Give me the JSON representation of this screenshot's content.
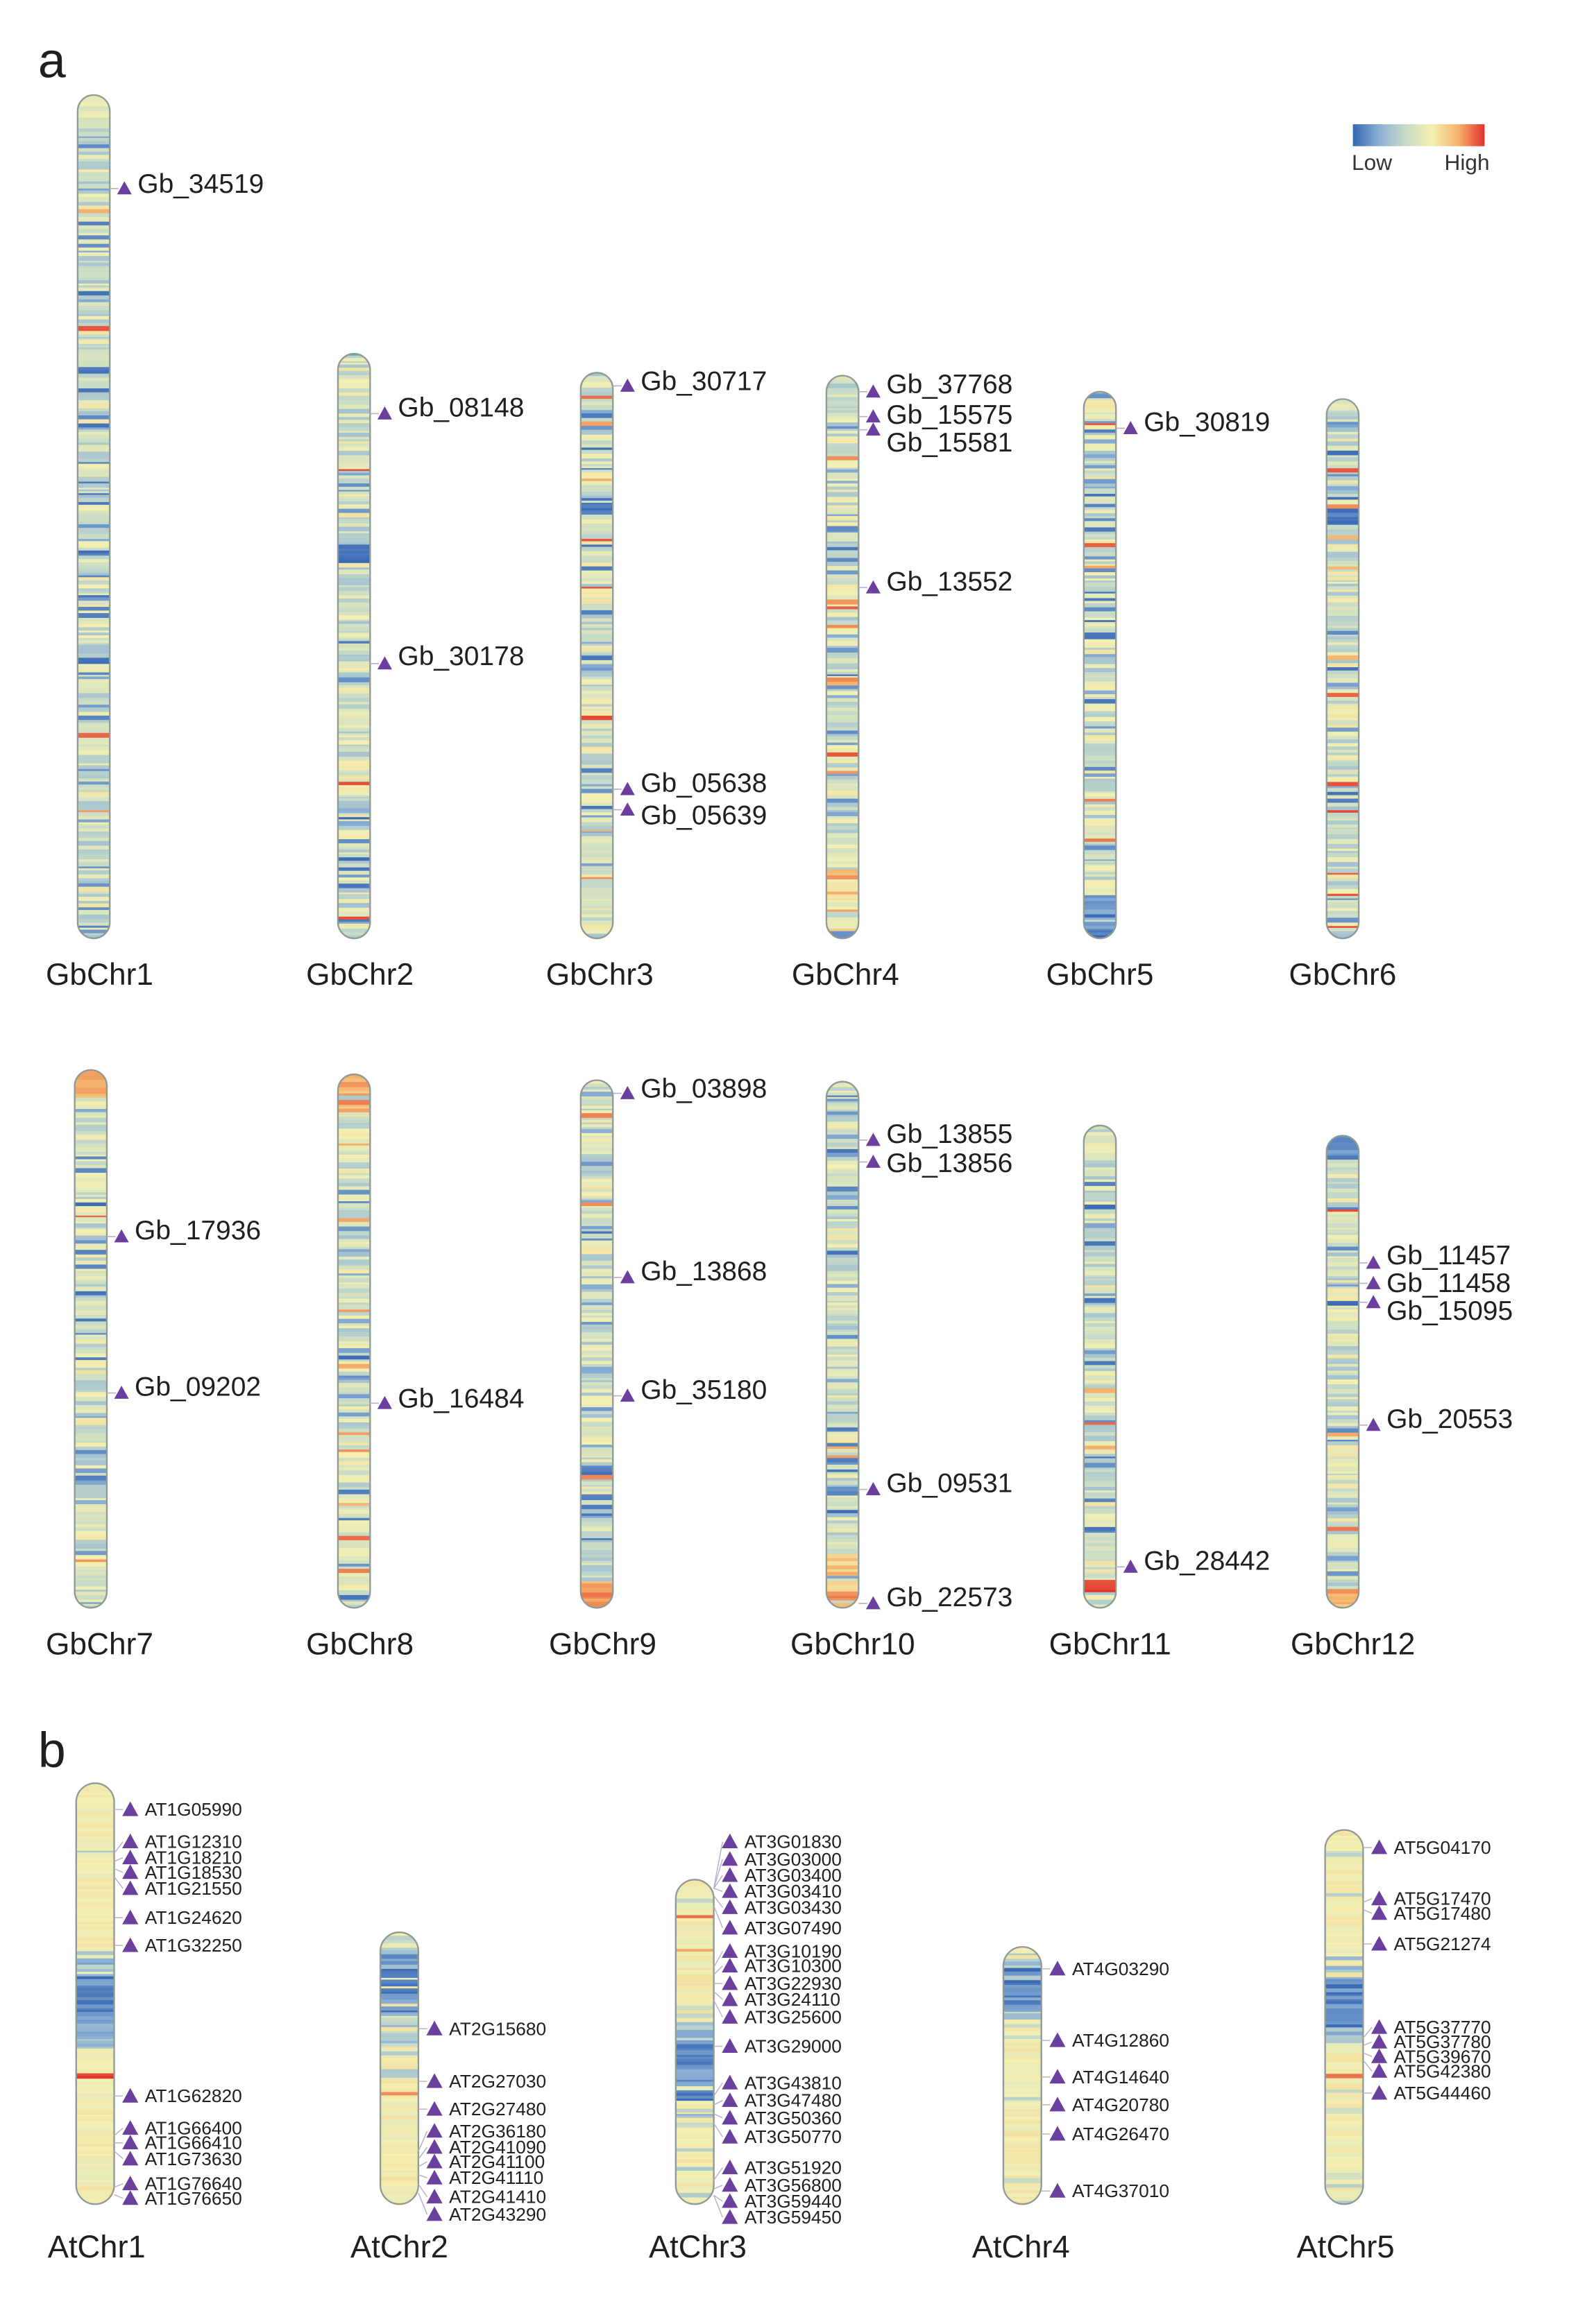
{
  "panel_a": {
    "label": "a",
    "legend": {
      "low": "Low",
      "high": "High"
    },
    "chromosomes": [
      {
        "name": "GbChr1",
        "genes": [
          "Gb_34519"
        ]
      },
      {
        "name": "GbChr2",
        "genes": [
          "Gb_08148",
          "Gb_30178"
        ]
      },
      {
        "name": "GbChr3",
        "genes": [
          "Gb_30717",
          "Gb_05638",
          "Gb_05639"
        ]
      },
      {
        "name": "GbChr4",
        "genes": [
          "Gb_37768",
          "Gb_15575",
          "Gb_15581",
          "Gb_13552"
        ]
      },
      {
        "name": "GbChr5",
        "genes": [
          "Gb_30819"
        ]
      },
      {
        "name": "GbChr6",
        "genes": []
      },
      {
        "name": "GbChr7",
        "genes": [
          "Gb_17936",
          "Gb_09202"
        ]
      },
      {
        "name": "GbChr8",
        "genes": [
          "Gb_16484"
        ]
      },
      {
        "name": "GbChr9",
        "genes": [
          "Gb_03898",
          "Gb_13868",
          "Gb_35180"
        ]
      },
      {
        "name": "GbChr10",
        "genes": [
          "Gb_13855",
          "Gb_13856",
          "Gb_09531",
          "Gb_22573"
        ]
      },
      {
        "name": "GbChr11",
        "genes": [
          "Gb_28442"
        ]
      },
      {
        "name": "GbChr12",
        "genes": [
          "Gb_11457",
          "Gb_11458",
          "Gb_15095",
          "Gb_20553"
        ]
      }
    ]
  },
  "panel_b": {
    "label": "b",
    "chromosomes": [
      {
        "name": "AtChr1",
        "genes": [
          "AT1G05990",
          "AT1G12310",
          "AT1G18210",
          "AT1G18530",
          "AT1G21550",
          "AT1G24620",
          "AT1G32250",
          "AT1G62820",
          "AT1G66400",
          "AT1G66410",
          "AT1G73630",
          "AT1G76640",
          "AT1G76650"
        ]
      },
      {
        "name": "AtChr2",
        "genes": [
          "AT2G15680",
          "AT2G27030",
          "AT2G27480",
          "AT2G36180",
          "AT2G41090",
          "AT2G41100",
          "AT2G41110",
          "AT2G41410",
          "AT2G43290"
        ]
      },
      {
        "name": "AtChr3",
        "genes": [
          "AT3G01830",
          "AT3G03000",
          "AT3G03400",
          "AT3G03410",
          "AT3G03430",
          "AT3G07490",
          "AT3G10190",
          "AT3G10300",
          "AT3G22930",
          "AT3G24110",
          "AT3G25600",
          "AT3G29000",
          "AT3G43810",
          "AT3G47480",
          "AT3G50360",
          "AT3G50770",
          "AT3G51920",
          "AT3G56800",
          "AT3G59440",
          "AT3G59450"
        ]
      },
      {
        "name": "AtChr4",
        "genes": [
          "AT4G03290",
          "AT4G12860",
          "AT4G14640",
          "AT4G20780",
          "AT4G26470",
          "AT4G37010"
        ]
      },
      {
        "name": "AtChr5",
        "genes": [
          "AT5G04170",
          "AT5G17470",
          "AT5G17480",
          "AT5G21274",
          "AT5G37770",
          "AT5G37780",
          "AT5G39670",
          "AT5G42380",
          "AT5G44460"
        ]
      }
    ]
  },
  "colors": {
    "heat_scale": [
      "#3566b3",
      "#8cb0d5",
      "#c7dbc8",
      "#f3efb2",
      "#f5b36c",
      "#e2312a"
    ],
    "marker": "#6a3f9e",
    "outline": "#8e9a94",
    "connector": "#b9b0cc"
  }
}
